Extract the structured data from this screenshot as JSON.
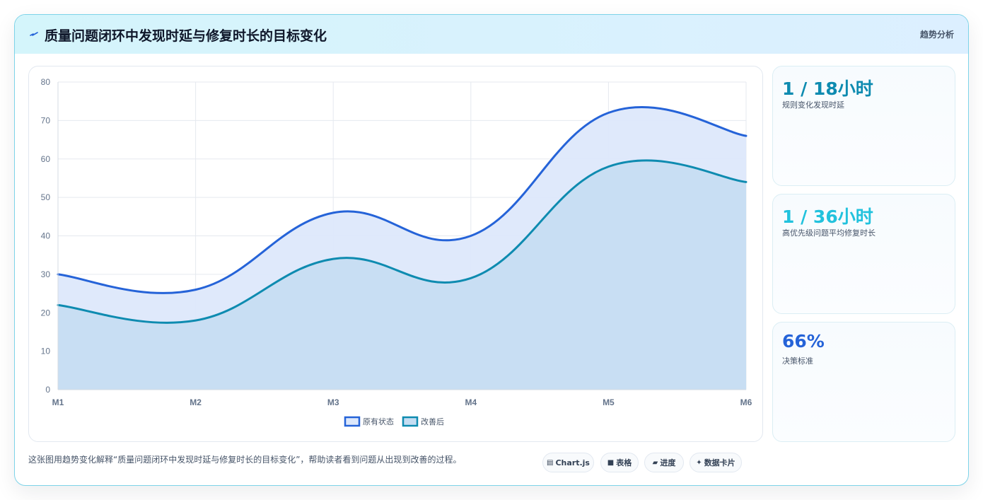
{
  "header": {
    "title": "质量问题闭环中发现时延与修复时长的目标变化",
    "tag": "趋势分析",
    "icon": "bolt-icon"
  },
  "chart_data": {
    "type": "area",
    "categories": [
      "M1",
      "M2",
      "M3",
      "M4",
      "M5",
      "M6"
    ],
    "series": [
      {
        "name": "原有状态",
        "values": [
          30,
          26,
          46,
          40,
          72,
          66
        ],
        "color": "#2563d8",
        "fill": "#dde8fb"
      },
      {
        "name": "改善后",
        "values": [
          22,
          18,
          34,
          29,
          58,
          54
        ],
        "color": "#0e8bb0",
        "fill": "#c5ddf2"
      }
    ],
    "ylim": [
      0,
      80
    ],
    "yticks": [
      0,
      10,
      20,
      30,
      40,
      50,
      60,
      70,
      80
    ],
    "grid": true,
    "legend": "bottom"
  },
  "stats": [
    {
      "value": "1 / 18小时",
      "label": "规则变化发现时延",
      "color": "#0e8bb0"
    },
    {
      "value": "1 / 36小时",
      "label": "高优先级问题平均修复时长",
      "color": "#22c2dd"
    },
    {
      "value": "66%",
      "label": "决策标准",
      "color": "#2563d8"
    }
  ],
  "footer": {
    "description": "这张图用趋势变化解释“质量问题闭环中发现时延与修复时长的目标变化”，帮助读者看到问题从出现到改善的过程。",
    "chips": [
      {
        "label": "Chart.js",
        "icon": "chart-icon",
        "glyph": "▤"
      },
      {
        "label": "表格",
        "icon": "table-icon",
        "glyph": "■"
      },
      {
        "label": "进度",
        "icon": "progress-icon",
        "glyph": "▰"
      },
      {
        "label": "数据卡片",
        "icon": "sparkle-icon",
        "glyph": "✦"
      }
    ]
  }
}
